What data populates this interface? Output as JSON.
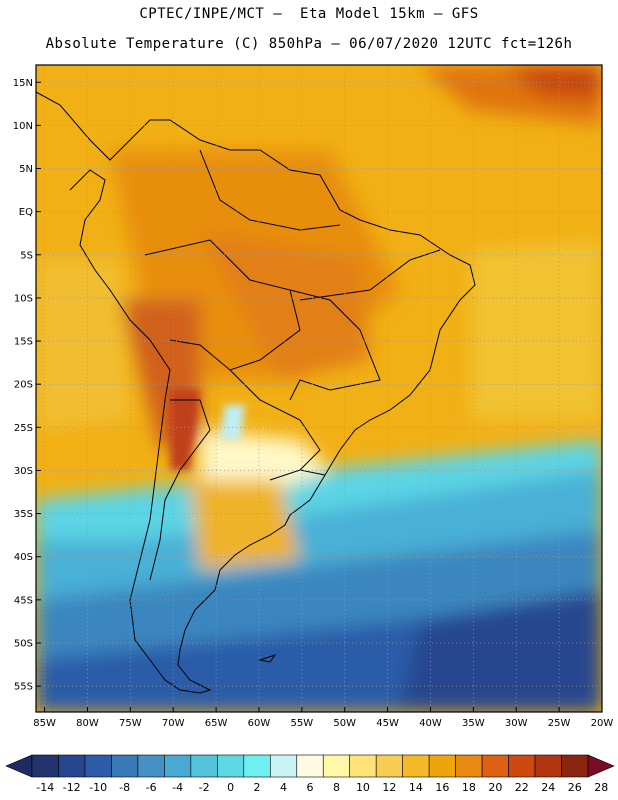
{
  "header": {
    "line1": "CPTEC/INPE/MCT –  Eta Model 15km – GFS",
    "line2": "Absolute Temperature (C) 850hPa – 06/07/2020 12UTC fct=126h"
  },
  "map": {
    "lat_range": [
      -58,
      17
    ],
    "lon_range": [
      -86,
      -20
    ],
    "lat_labels": [
      "15N",
      "10N",
      "5N",
      "EQ",
      "5S",
      "10S",
      "15S",
      "20S",
      "25S",
      "30S",
      "35S",
      "40S",
      "45S",
      "50S",
      "55S"
    ],
    "lat_values": [
      15,
      10,
      5,
      0,
      -5,
      -10,
      -15,
      -20,
      -25,
      -30,
      -35,
      -40,
      -45,
      -50,
      -55
    ],
    "lon_labels": [
      "85W",
      "80W",
      "75W",
      "70W",
      "65W",
      "60W",
      "55W",
      "50W",
      "45W",
      "40W",
      "35W",
      "30W",
      "25W",
      "20W"
    ],
    "lon_values": [
      -85,
      -80,
      -75,
      -70,
      -65,
      -60,
      -55,
      -50,
      -45,
      -40,
      -35,
      -30,
      -25,
      -20
    ]
  },
  "colorbar": {
    "labels": [
      "-14",
      "-12",
      "-10",
      "-8",
      "-6",
      "-4",
      "-2",
      "0",
      "2",
      "4",
      "6",
      "8",
      "10",
      "12",
      "14",
      "16",
      "18",
      "20",
      "22",
      "24",
      "26",
      "28"
    ],
    "colors": [
      "#22336e",
      "#26478f",
      "#2c5ca8",
      "#3a79b8",
      "#4491c4",
      "#4aa9d3",
      "#55c2dc",
      "#5fd8e6",
      "#6ef0f0",
      "#c9f4f4",
      "#fffbe2",
      "#fff8a8",
      "#ffe37a",
      "#f9cd55",
      "#f4b928",
      "#eea50d",
      "#e88a10",
      "#de6010",
      "#cc4a10",
      "#b03510",
      "#8a2610"
    ]
  }
}
